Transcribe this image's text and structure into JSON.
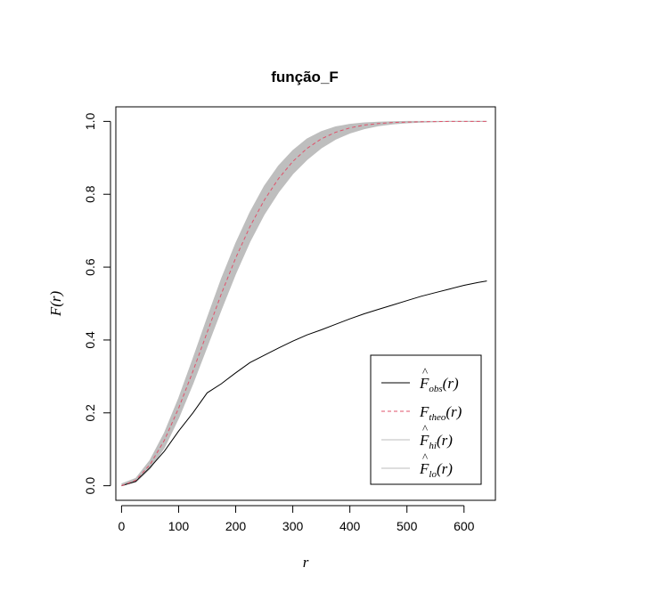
{
  "chart_data": {
    "type": "line",
    "title": "função_F",
    "xlabel": "r",
    "ylabel": "F(r)",
    "xlim": [
      -10,
      655
    ],
    "ylim": [
      -0.04,
      1.04
    ],
    "x_ticks": [
      0,
      100,
      200,
      300,
      400,
      500,
      600
    ],
    "y_ticks": [
      0.0,
      0.2,
      0.4,
      0.6,
      0.8,
      1.0
    ],
    "x_tick_labels": [
      "0",
      "100",
      "200",
      "300",
      "400",
      "500",
      "600"
    ],
    "y_tick_labels": [
      "0.0",
      "0.2",
      "0.4",
      "0.6",
      "0.8",
      "1.0"
    ],
    "grid": false,
    "legend_position": "bottom-right",
    "colors": {
      "obs": "#000000",
      "theo": "#df536b",
      "envelope": "#bebebe",
      "axis": "#000000"
    },
    "x": [
      0,
      25,
      50,
      75,
      100,
      125,
      150,
      175,
      200,
      225,
      250,
      275,
      300,
      325,
      350,
      375,
      400,
      425,
      450,
      475,
      500,
      525,
      550,
      575,
      600,
      625,
      640
    ],
    "series": [
      {
        "key": "obs",
        "name": "F̂obs(r)",
        "base": "F",
        "hat": "^",
        "sub": "obs",
        "style": "solid",
        "values": [
          0.0,
          0.012,
          0.05,
          0.095,
          0.15,
          0.2,
          0.255,
          0.28,
          0.31,
          0.338,
          0.358,
          0.378,
          0.397,
          0.414,
          0.428,
          0.443,
          0.458,
          0.472,
          0.484,
          0.496,
          0.508,
          0.52,
          0.53,
          0.54,
          0.55,
          0.558,
          0.562
        ]
      },
      {
        "key": "theo",
        "name": "Ftheo(r)",
        "base": "F",
        "hat": "",
        "sub": "theo",
        "style": "dashed",
        "values": [
          0.0,
          0.015,
          0.058,
          0.125,
          0.213,
          0.314,
          0.421,
          0.527,
          0.625,
          0.711,
          0.784,
          0.843,
          0.89,
          0.926,
          0.952,
          0.97,
          0.982,
          0.99,
          0.994,
          0.997,
          0.998,
          0.999,
          0.9995,
          1.0,
          1.0,
          1.0,
          1.0
        ]
      },
      {
        "key": "hi",
        "name": "F̂hi(r)",
        "base": "F",
        "hat": "^",
        "sub": "hi",
        "style": "envelope",
        "values": [
          0.005,
          0.02,
          0.07,
          0.145,
          0.24,
          0.348,
          0.46,
          0.568,
          0.665,
          0.75,
          0.822,
          0.878,
          0.92,
          0.952,
          0.972,
          0.985,
          0.992,
          0.996,
          0.998,
          0.999,
          1.0,
          1.0,
          1.0,
          1.0,
          1.0,
          1.0,
          1.0
        ]
      },
      {
        "key": "lo",
        "name": "F̂lo(r)",
        "base": "F",
        "hat": "^",
        "sub": "lo",
        "style": "envelope",
        "values": [
          0.0,
          0.01,
          0.047,
          0.105,
          0.186,
          0.28,
          0.382,
          0.484,
          0.582,
          0.67,
          0.745,
          0.806,
          0.856,
          0.895,
          0.927,
          0.951,
          0.968,
          0.98,
          0.988,
          0.993,
          0.996,
          0.998,
          0.999,
          1.0,
          1.0,
          1.0,
          1.0
        ]
      }
    ]
  }
}
